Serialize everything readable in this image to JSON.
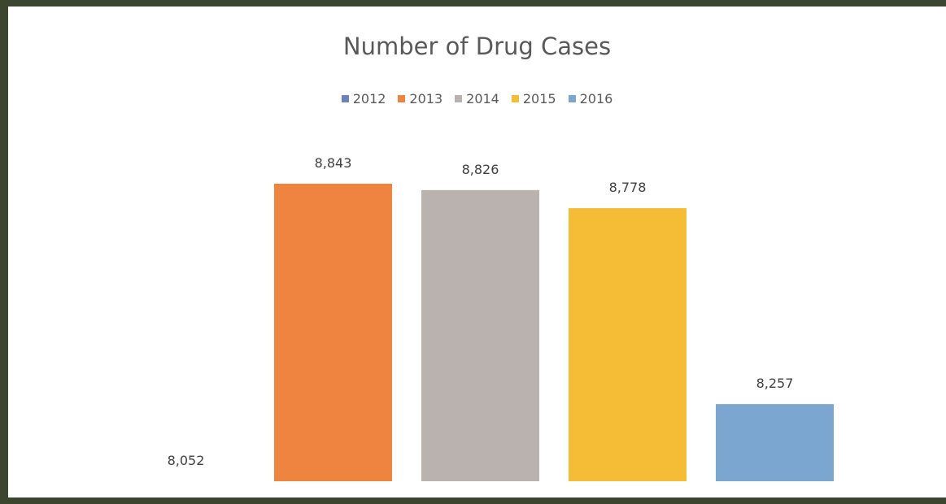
{
  "chart_data": {
    "type": "bar",
    "title": "Number of Drug Cases",
    "categories": [
      "2012",
      "2013",
      "2014",
      "2015",
      "2016"
    ],
    "values": [
      8052,
      8843,
      8826,
      8778,
      8257
    ],
    "value_labels": [
      "8,052",
      "8,843",
      "8,826",
      "8,778",
      "8,257"
    ],
    "colors": [
      "#6a84b9",
      "#ef8340",
      "#b9b2ae",
      "#f5bc36",
      "#7aa6cf"
    ],
    "legend_position": "top",
    "grid": false,
    "xlabel": "",
    "ylabel": "",
    "y_axis_visible": false
  },
  "legend": {
    "items": [
      {
        "label": "2012",
        "color": "#6a84b9"
      },
      {
        "label": "2013",
        "color": "#ef8340"
      },
      {
        "label": "2014",
        "color": "#b9b2ae"
      },
      {
        "label": "2015",
        "color": "#f5bc36"
      },
      {
        "label": "2016",
        "color": "#7aa6cf"
      }
    ]
  }
}
